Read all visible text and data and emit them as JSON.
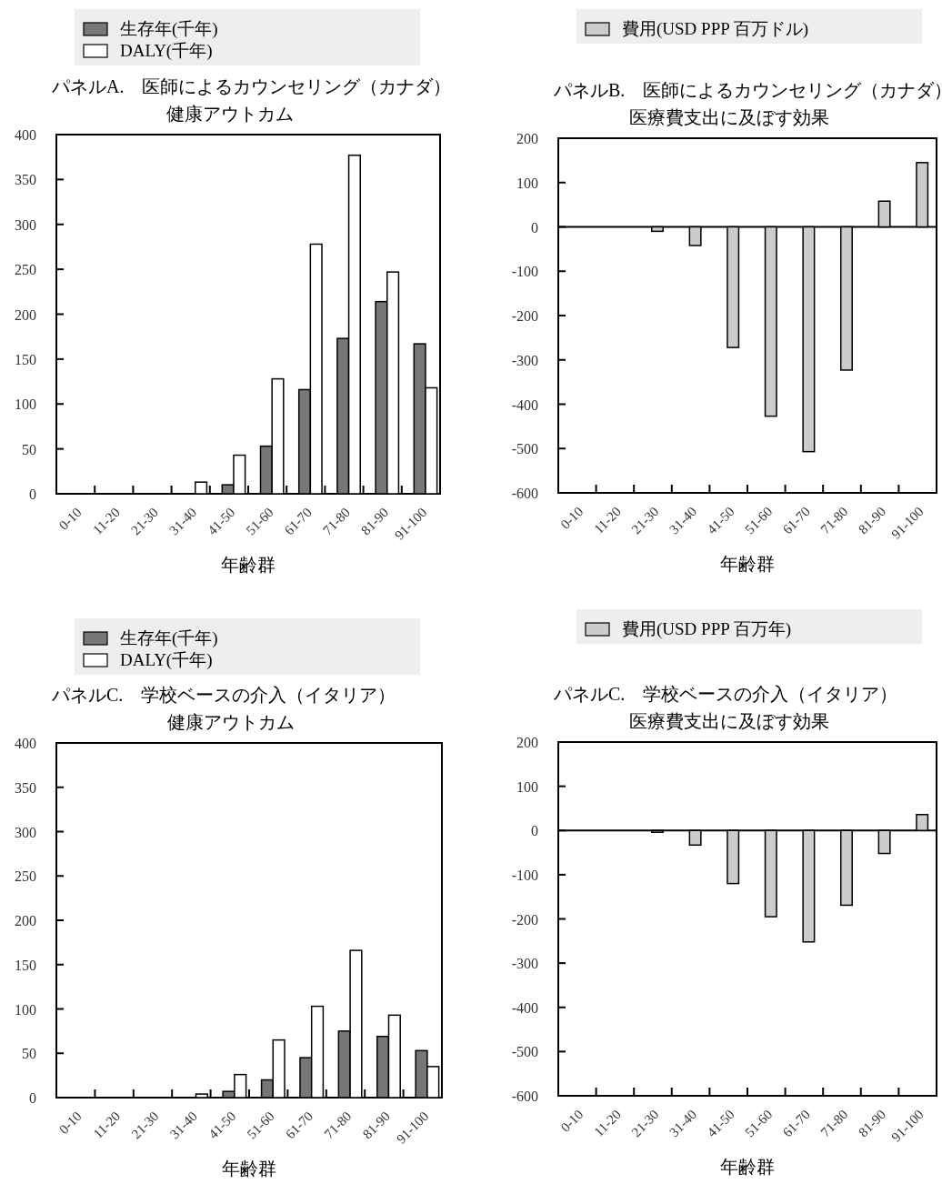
{
  "chart_data": [
    {
      "type": "bar",
      "title": "パネルA.　医師によるカウンセリング（カナダ）",
      "subtitle": "健康アウトカム",
      "xlabel": "年齢群",
      "categories": [
        "0-10",
        "11-20",
        "21-30",
        "31-40",
        "41-50",
        "51-60",
        "61-70",
        "71-80",
        "81-90",
        "91-100"
      ],
      "series": [
        {
          "name": "生存年(千年)",
          "color": "#777777",
          "values": [
            0,
            0,
            0,
            0,
            10,
            53,
            116,
            173,
            214,
            167
          ]
        },
        {
          "name": "DALY(千年)",
          "color": "#ffffff",
          "values": [
            0,
            0,
            0,
            13,
            43,
            128,
            278,
            377,
            247,
            118
          ]
        }
      ],
      "ylim": [
        0,
        400
      ],
      "yticks": [
        0,
        50,
        100,
        150,
        200,
        250,
        300,
        350,
        400
      ],
      "legend": "top"
    },
    {
      "type": "bar",
      "title": "パネルB.　医師によるカウンセリング（カナダ）",
      "subtitle": "医療費支出に及ぼす効果",
      "xlabel": "年齢群",
      "categories": [
        "0-10",
        "11-20",
        "21-30",
        "31-40",
        "41-50",
        "51-60",
        "61-70",
        "71-80",
        "81-90",
        "91-100"
      ],
      "series": [
        {
          "name": "費用(USD PPP 百万ドル)",
          "color": "#cccccc",
          "values": [
            0,
            0,
            -10,
            -42,
            -272,
            -427,
            -507,
            -323,
            58,
            145
          ]
        }
      ],
      "ylim": [
        -600,
        200
      ],
      "yticks": [
        -600,
        -500,
        -400,
        -300,
        -200,
        -100,
        0,
        100,
        200
      ],
      "legend": "top"
    },
    {
      "type": "bar",
      "title": "パネルC.　学校ベースの介入（イタリア）",
      "subtitle": "健康アウトカム",
      "xlabel": "年齢群",
      "categories": [
        "0-10",
        "11-20",
        "21-30",
        "31-40",
        "41-50",
        "51-60",
        "61-70",
        "71-80",
        "81-90",
        "91-100"
      ],
      "series": [
        {
          "name": "生存年(千年)",
          "color": "#777777",
          "values": [
            0,
            0,
            0,
            0,
            7,
            20,
            45,
            75,
            69,
            53
          ]
        },
        {
          "name": "DALY(千年)",
          "color": "#ffffff",
          "values": [
            0,
            0,
            0,
            4,
            26,
            65,
            103,
            166,
            93,
            35
          ]
        }
      ],
      "ylim": [
        0,
        400
      ],
      "yticks": [
        0,
        50,
        100,
        150,
        200,
        250,
        300,
        350,
        400
      ],
      "legend": "top"
    },
    {
      "type": "bar",
      "title": "パネルC.　学校ベースの介入（イタリア）",
      "subtitle": "医療費支出に及ぼす効果",
      "xlabel": "年齢群",
      "categories": [
        "0-10",
        "11-20",
        "21-30",
        "31-40",
        "41-50",
        "51-60",
        "61-70",
        "71-80",
        "81-90",
        "91-100"
      ],
      "series": [
        {
          "name": "費用(USD PPP 百万年)",
          "color": "#cccccc",
          "values": [
            0,
            0,
            -4,
            -33,
            -120,
            -195,
            -252,
            -169,
            -52,
            36
          ]
        }
      ],
      "ylim": [
        -600,
        200
      ],
      "yticks": [
        -600,
        -500,
        -400,
        -300,
        -200,
        -100,
        0,
        100,
        200
      ],
      "legend": "top"
    }
  ]
}
